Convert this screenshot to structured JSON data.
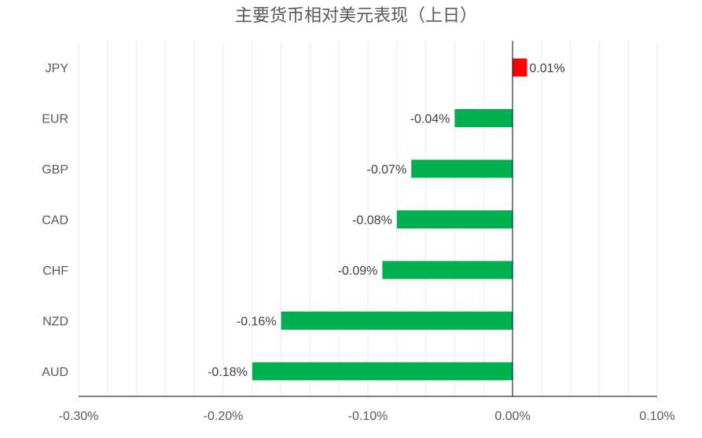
{
  "chart_data": {
    "type": "bar",
    "orientation": "horizontal",
    "title": "主要货币相对美元表现（上日）",
    "categories": [
      "JPY",
      "EUR",
      "GBP",
      "CAD",
      "CHF",
      "NZD",
      "AUD"
    ],
    "values": [
      0.01,
      -0.04,
      -0.07,
      -0.08,
      -0.09,
      -0.16,
      -0.18
    ],
    "value_labels": [
      "0.01%",
      "-0.04%",
      "-0.07%",
      "-0.08%",
      "-0.09%",
      "-0.16%",
      "-0.18%"
    ],
    "xlim": [
      -0.3,
      0.1
    ],
    "x_ticks": [
      -0.3,
      -0.2,
      -0.1,
      0.0,
      0.1
    ],
    "x_tick_labels": [
      "-0.30%",
      "-0.20%",
      "-0.10%",
      "0.00%",
      "0.10%"
    ],
    "unit": "%",
    "grid": "vertical",
    "legend": "none",
    "colors": {
      "positive": "#ff0000",
      "negative": "#00b050",
      "grid": "#ededed",
      "axis": "#000000"
    }
  }
}
